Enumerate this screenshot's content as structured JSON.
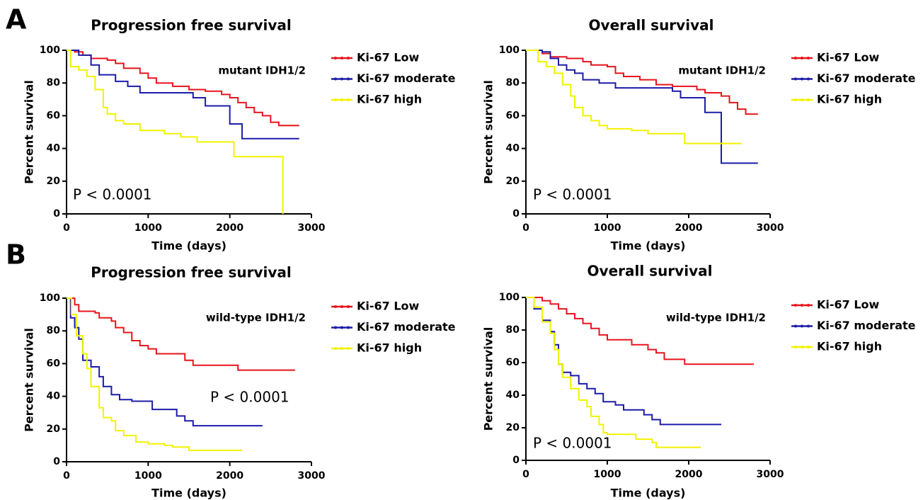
{
  "chart_data": [
    {
      "type": "line",
      "step": true,
      "panel_label": "A",
      "title": "Progression free survival",
      "annotation": "mutant IDH1/2",
      "p_value": "P < 0.0001",
      "xlabel": "Time (days)",
      "ylabel": "Percent survival",
      "xlim": [
        0,
        3000
      ],
      "xticks": [
        0,
        1000,
        2000,
        3000
      ],
      "ylim": [
        0,
        100
      ],
      "yticks": [
        0,
        20,
        40,
        60,
        80,
        100
      ],
      "series": [
        {
          "name": "Ki-67 Low",
          "color": "#e8141c",
          "x": [
            0,
            100,
            200,
            300,
            500,
            600,
            700,
            900,
            1000,
            1100,
            1300,
            1500,
            1700,
            1900,
            2000,
            2100,
            2200,
            2300,
            2400,
            2500,
            2600,
            2850
          ],
          "values": [
            100,
            99,
            97,
            95,
            94,
            92,
            89,
            86,
            83,
            80,
            78,
            76,
            75,
            73,
            71,
            68,
            65,
            62,
            60,
            56,
            54,
            54
          ]
        },
        {
          "name": "Ki-67 moderate",
          "color": "#1c1ca8",
          "x": [
            0,
            150,
            300,
            400,
            600,
            750,
            900,
            1550,
            1700,
            1900,
            2000,
            2100,
            2150,
            2850
          ],
          "values": [
            100,
            97,
            91,
            85,
            81,
            78,
            74,
            71,
            66,
            66,
            55,
            55,
            46,
            46
          ]
        },
        {
          "name": "Ki-67 high",
          "color": "#f2f200",
          "x": [
            0,
            50,
            150,
            250,
            350,
            450,
            500,
            600,
            700,
            900,
            1200,
            1400,
            1600,
            2050,
            2500,
            2650
          ],
          "values": [
            100,
            90,
            88,
            84,
            76,
            65,
            61,
            57,
            55,
            51,
            49,
            47,
            44,
            35,
            35,
            0
          ]
        }
      ]
    },
    {
      "type": "line",
      "step": true,
      "title": "Overall survival",
      "annotation": "mutant IDH1/2",
      "p_value": "P < 0.0001",
      "xlabel": "Time (days)",
      "ylabel": "Percent survival",
      "xlim": [
        0,
        3000
      ],
      "xticks": [
        0,
        1000,
        2000,
        3000
      ],
      "ylim": [
        0,
        100
      ],
      "yticks": [
        0,
        20,
        40,
        60,
        80,
        100
      ],
      "series": [
        {
          "name": "Ki-67 Low",
          "color": "#e8141c",
          "x": [
            0,
            200,
            300,
            500,
            700,
            800,
            1000,
            1100,
            1200,
            1400,
            1600,
            1800,
            2100,
            2200,
            2400,
            2500,
            2600,
            2700,
            2850
          ],
          "values": [
            100,
            98,
            96,
            95,
            93,
            91,
            90,
            86,
            84,
            82,
            79,
            78,
            76,
            74,
            72,
            68,
            64,
            61,
            61
          ]
        },
        {
          "name": "Ki-67 moderate",
          "color": "#1c1ca8",
          "x": [
            0,
            200,
            300,
            400,
            500,
            600,
            700,
            900,
            1100,
            1800,
            1900,
            2200,
            2400,
            2850
          ],
          "values": [
            100,
            99,
            95,
            91,
            88,
            86,
            82,
            80,
            77,
            75,
            71,
            62,
            31,
            31
          ]
        },
        {
          "name": "Ki-67 high",
          "color": "#f2f200",
          "x": [
            0,
            150,
            250,
            350,
            450,
            550,
            600,
            700,
            800,
            900,
            1000,
            1300,
            1500,
            1950,
            2650
          ],
          "values": [
            100,
            93,
            90,
            86,
            79,
            72,
            65,
            60,
            57,
            54,
            52,
            51,
            49,
            43,
            43
          ]
        }
      ]
    },
    {
      "type": "line",
      "step": true,
      "panel_label": "B",
      "title": "Progression free survival",
      "annotation": "wild-type IDH1/2",
      "p_value": "P < 0.0001",
      "xlabel": "Time (days)",
      "ylabel": "Percent survival",
      "xlim": [
        0,
        3000
      ],
      "xticks": [
        0,
        1000,
        2000,
        3000
      ],
      "ylim": [
        0,
        100
      ],
      "yticks": [
        0,
        20,
        40,
        60,
        80,
        100
      ],
      "series": [
        {
          "name": "Ki-67 Low",
          "color": "#e8141c",
          "x": [
            0,
            100,
            150,
            350,
            400,
            550,
            600,
            700,
            800,
            900,
            1000,
            1100,
            1450,
            1550,
            2100,
            2800
          ],
          "values": [
            100,
            96,
            92,
            91,
            88,
            86,
            82,
            79,
            74,
            71,
            69,
            66,
            62,
            59,
            56,
            56
          ]
        },
        {
          "name": "Ki-67 moderate",
          "color": "#1c1ca8",
          "x": [
            0,
            50,
            100,
            150,
            200,
            300,
            400,
            450,
            550,
            650,
            800,
            1050,
            1350,
            1450,
            1550,
            2400
          ],
          "values": [
            100,
            88,
            82,
            75,
            62,
            58,
            52,
            46,
            41,
            38,
            37,
            32,
            28,
            25,
            22,
            22
          ]
        },
        {
          "name": "Ki-67 high",
          "color": "#f2f200",
          "x": [
            0,
            60,
            120,
            200,
            250,
            300,
            400,
            450,
            550,
            600,
            700,
            850,
            1000,
            1200,
            1300,
            1500,
            2150
          ],
          "values": [
            100,
            90,
            77,
            66,
            57,
            46,
            33,
            27,
            25,
            19,
            16,
            12,
            11,
            10,
            9,
            7,
            7
          ]
        }
      ]
    },
    {
      "type": "line",
      "step": true,
      "title": "Overall survival",
      "annotation": "wild-type IDH1/2",
      "p_value": "P < 0.0001",
      "xlabel": "Time (days)",
      "ylabel": "Percent survival",
      "xlim": [
        0,
        3000
      ],
      "xticks": [
        0,
        1000,
        2000,
        3000
      ],
      "ylim": [
        0,
        100
      ],
      "yticks": [
        0,
        20,
        40,
        60,
        80,
        100
      ],
      "series": [
        {
          "name": "Ki-67 Low",
          "color": "#e8141c",
          "x": [
            0,
            200,
            300,
            400,
            500,
            600,
            700,
            800,
            900,
            1000,
            1300,
            1500,
            1600,
            1700,
            1950,
            2800
          ],
          "values": [
            100,
            98,
            96,
            93,
            90,
            87,
            84,
            81,
            77,
            74,
            71,
            68,
            66,
            62,
            59,
            59
          ]
        },
        {
          "name": "Ki-67 moderate",
          "color": "#1c1ca8",
          "x": [
            0,
            100,
            200,
            300,
            350,
            400,
            450,
            550,
            650,
            750,
            850,
            950,
            1100,
            1200,
            1450,
            1550,
            1650,
            2400
          ],
          "values": [
            100,
            93,
            86,
            79,
            71,
            59,
            54,
            52,
            47,
            44,
            41,
            36,
            34,
            31,
            28,
            25,
            22,
            22
          ]
        },
        {
          "name": "Ki-67 high",
          "color": "#f2f200",
          "x": [
            0,
            100,
            200,
            300,
            350,
            400,
            450,
            550,
            650,
            750,
            800,
            900,
            950,
            1000,
            1350,
            1550,
            1600,
            2150
          ],
          "values": [
            100,
            94,
            85,
            78,
            68,
            59,
            51,
            44,
            37,
            33,
            27,
            22,
            17,
            16,
            13,
            11,
            8,
            8
          ]
        }
      ]
    }
  ]
}
